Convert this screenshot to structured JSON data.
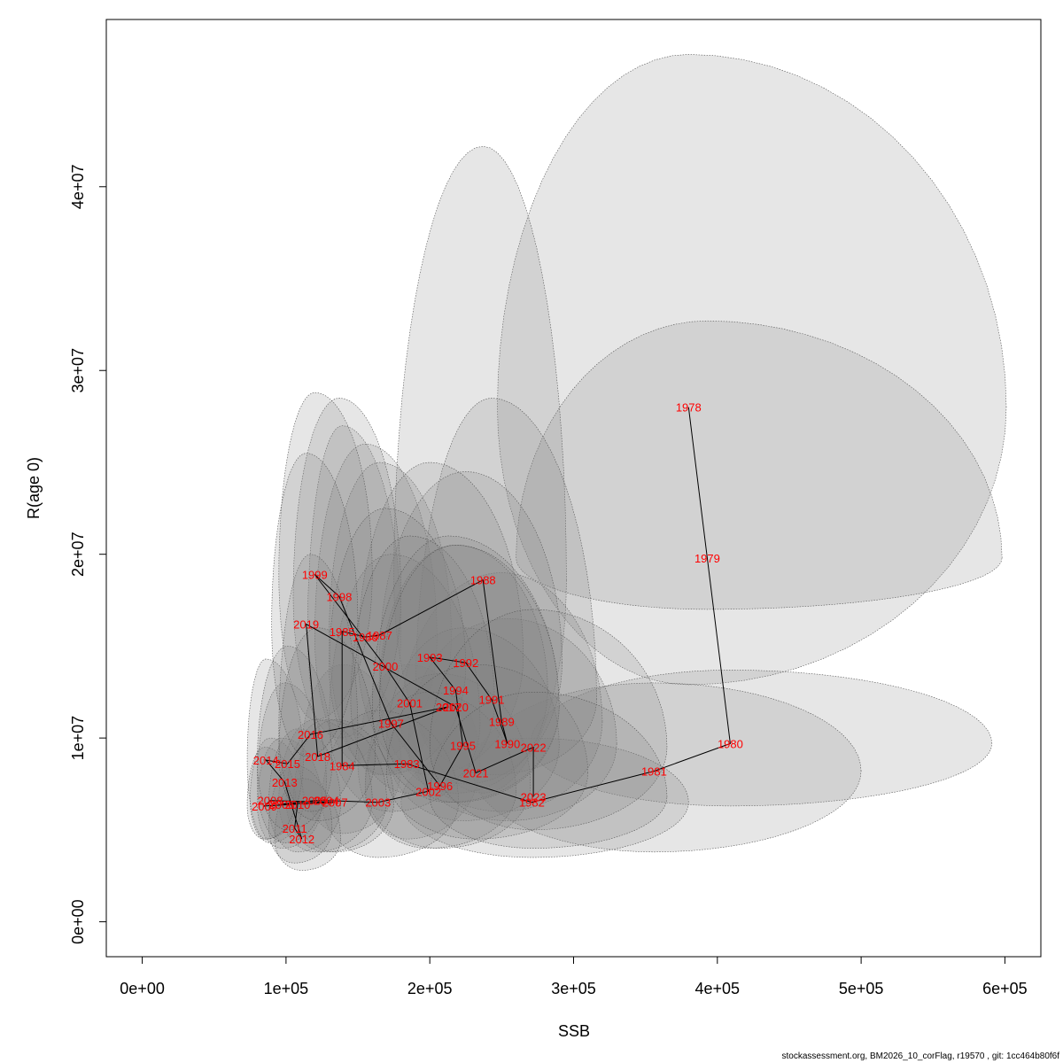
{
  "chart_data": {
    "type": "scatter",
    "title": "",
    "xlabel": "SSB",
    "ylabel": "R(age 0)",
    "xlim": [
      -25000,
      625000
    ],
    "ylim": [
      -1900000,
      49100000
    ],
    "xticks": [
      0,
      100000,
      200000,
      300000,
      400000,
      500000,
      600000
    ],
    "xtick_labels": [
      "0e+00",
      "1e+05",
      "2e+05",
      "3e+05",
      "4e+05",
      "5e+05",
      "6e+05"
    ],
    "yticks": [
      0,
      10000000,
      20000000,
      30000000,
      40000000
    ],
    "ytick_labels": [
      "0e+00",
      "1e+07",
      "2e+07",
      "3e+07",
      "4e+07"
    ],
    "grid": false,
    "legend": "none",
    "label_color": "#ff0000",
    "line_color": "#000000",
    "ellipse_fill": "#808080",
    "points": [
      {
        "year": "1978",
        "ssb": 380000,
        "r": 28000000
      },
      {
        "year": "1979",
        "ssb": 393000,
        "r": 19800000
      },
      {
        "year": "1980",
        "ssb": 409000,
        "r": 9700000
      },
      {
        "year": "1981",
        "ssb": 356000,
        "r": 8200000
      },
      {
        "year": "1982",
        "ssb": 271000,
        "r": 6500000
      },
      {
        "year": "1983",
        "ssb": 184000,
        "r": 8600000
      },
      {
        "year": "1984",
        "ssb": 139000,
        "r": 8500000
      },
      {
        "year": "1985",
        "ssb": 139000,
        "r": 15800000
      },
      {
        "year": "1986",
        "ssb": 155000,
        "r": 15500000
      },
      {
        "year": "1987",
        "ssb": 165000,
        "r": 15600000
      },
      {
        "year": "1988",
        "ssb": 237000,
        "r": 18600000
      },
      {
        "year": "1989",
        "ssb": 250000,
        "r": 10900000
      },
      {
        "year": "1990",
        "ssb": 254000,
        "r": 9700000
      },
      {
        "year": "1991",
        "ssb": 243000,
        "r": 12100000
      },
      {
        "year": "1992",
        "ssb": 225000,
        "r": 14100000
      },
      {
        "year": "1993",
        "ssb": 200000,
        "r": 14400000
      },
      {
        "year": "1994",
        "ssb": 218000,
        "r": 12600000
      },
      {
        "year": "1995",
        "ssb": 223000,
        "r": 9600000
      },
      {
        "year": "1996",
        "ssb": 207000,
        "r": 7400000
      },
      {
        "year": "1997",
        "ssb": 173000,
        "r": 10800000
      },
      {
        "year": "1998",
        "ssb": 137000,
        "r": 17700000
      },
      {
        "year": "1999",
        "ssb": 120000,
        "r": 18900000
      },
      {
        "year": "2000",
        "ssb": 169000,
        "r": 13900000
      },
      {
        "year": "2001",
        "ssb": 186000,
        "r": 11900000
      },
      {
        "year": "2002",
        "ssb": 199000,
        "r": 7100000
      },
      {
        "year": "2003",
        "ssb": 164000,
        "r": 6500000
      },
      {
        "year": "2004",
        "ssb": 128000,
        "r": 6600000
      },
      {
        "year": "2005",
        "ssb": 120000,
        "r": 6600000
      },
      {
        "year": "2006",
        "ssb": 97000,
        "r": 6400000
      },
      {
        "year": "2007",
        "ssb": 134000,
        "r": 6500000
      },
      {
        "year": "2008",
        "ssb": 89000,
        "r": 6600000
      },
      {
        "year": "2009",
        "ssb": 85000,
        "r": 6300000
      },
      {
        "year": "2010",
        "ssb": 108000,
        "r": 6400000
      },
      {
        "year": "2011",
        "ssb": 106000,
        "r": 5100000
      },
      {
        "year": "2012",
        "ssb": 111000,
        "r": 4500000
      },
      {
        "year": "2013",
        "ssb": 99000,
        "r": 7600000
      },
      {
        "year": "2014",
        "ssb": 86000,
        "r": 8800000
      },
      {
        "year": "2015",
        "ssb": 101000,
        "r": 8600000
      },
      {
        "year": "2016",
        "ssb": 117000,
        "r": 10200000
      },
      {
        "year": "2017",
        "ssb": 213000,
        "r": 11700000
      },
      {
        "year": "2018",
        "ssb": 122000,
        "r": 9000000
      },
      {
        "year": "2019",
        "ssb": 114000,
        "r": 16200000
      },
      {
        "year": "2020",
        "ssb": 218000,
        "r": 11700000
      },
      {
        "year": "2021",
        "ssb": 232000,
        "r": 8100000
      },
      {
        "year": "2022",
        "ssb": 272000,
        "r": 9500000
      },
      {
        "year": "2023",
        "ssb": 272000,
        "r": 6800000
      }
    ],
    "ellipses": [
      {
        "ssb": 380000,
        "r": 28000000,
        "ssb_lo": 247000,
        "ssb_hi": 601000,
        "r_lo": 12900000,
        "r_hi": 47200000
      },
      {
        "ssb": 393000,
        "r": 19800000,
        "ssb_lo": 260000,
        "ssb_hi": 598000,
        "r_lo": 17000000,
        "r_hi": 32700000
      },
      {
        "ssb": 409000,
        "r": 9700000,
        "ssb_lo": 270000,
        "ssb_hi": 591000,
        "r_lo": 6300000,
        "r_hi": 13700000
      },
      {
        "ssb": 356000,
        "r": 8200000,
        "ssb_lo": 230000,
        "ssb_hi": 500000,
        "r_lo": 3800000,
        "r_hi": 13000000
      },
      {
        "ssb": 271000,
        "r": 6500000,
        "ssb_lo": 180000,
        "ssb_hi": 380000,
        "r_lo": 3500000,
        "r_hi": 10000000
      },
      {
        "ssb": 184000,
        "r": 8600000,
        "ssb_lo": 150000,
        "ssb_hi": 235000,
        "r_lo": 4500000,
        "r_hi": 14000000
      },
      {
        "ssb": 139000,
        "r": 8500000,
        "ssb_lo": 110000,
        "ssb_hi": 180000,
        "r_lo": 4800000,
        "r_hi": 14000000
      },
      {
        "ssb": 139000,
        "r": 15800000,
        "ssb_lo": 115000,
        "ssb_hi": 180000,
        "r_lo": 8500000,
        "r_hi": 27000000
      },
      {
        "ssb": 155000,
        "r": 15500000,
        "ssb_lo": 120000,
        "ssb_hi": 205000,
        "r_lo": 8500000,
        "r_hi": 26000000
      },
      {
        "ssb": 165000,
        "r": 15600000,
        "ssb_lo": 130000,
        "ssb_hi": 215000,
        "r_lo": 8000000,
        "r_hi": 25000000
      },
      {
        "ssb": 237000,
        "r": 18600000,
        "ssb_lo": 175000,
        "ssb_hi": 295000,
        "r_lo": 7000000,
        "r_hi": 42200000
      },
      {
        "ssb": 250000,
        "r": 10900000,
        "ssb_lo": 180000,
        "ssb_hi": 320000,
        "r_lo": 6000000,
        "r_hi": 19000000
      },
      {
        "ssb": 254000,
        "r": 9700000,
        "ssb_lo": 185000,
        "ssb_hi": 330000,
        "r_lo": 5500000,
        "r_hi": 16500000
      },
      {
        "ssb": 243000,
        "r": 12100000,
        "ssb_lo": 190000,
        "ssb_hi": 316000,
        "r_lo": 8000000,
        "r_hi": 28500000
      },
      {
        "ssb": 225000,
        "r": 14100000,
        "ssb_lo": 165000,
        "ssb_hi": 292000,
        "r_lo": 7500000,
        "r_hi": 24500000
      },
      {
        "ssb": 200000,
        "r": 14400000,
        "ssb_lo": 150000,
        "ssb_hi": 265000,
        "r_lo": 8000000,
        "r_hi": 25000000
      },
      {
        "ssb": 218000,
        "r": 12600000,
        "ssb_lo": 165000,
        "ssb_hi": 282000,
        "r_lo": 7000000,
        "r_hi": 20500000
      },
      {
        "ssb": 223000,
        "r": 9600000,
        "ssb_lo": 170000,
        "ssb_hi": 290000,
        "r_lo": 5500000,
        "r_hi": 16000000
      },
      {
        "ssb": 207000,
        "r": 7400000,
        "ssb_lo": 155000,
        "ssb_hi": 270000,
        "r_lo": 4000000,
        "r_hi": 13500000
      },
      {
        "ssb": 173000,
        "r": 10800000,
        "ssb_lo": 130000,
        "ssb_hi": 235000,
        "r_lo": 6000000,
        "r_hi": 20000000
      },
      {
        "ssb": 137000,
        "r": 17700000,
        "ssb_lo": 105000,
        "ssb_hi": 180000,
        "r_lo": 10000000,
        "r_hi": 28500000
      },
      {
        "ssb": 120000,
        "r": 18900000,
        "ssb_lo": 95000,
        "ssb_hi": 160000,
        "r_lo": 11000000,
        "r_hi": 28800000
      },
      {
        "ssb": 169000,
        "r": 13900000,
        "ssb_lo": 130000,
        "ssb_hi": 225000,
        "r_lo": 8000000,
        "r_hi": 22500000
      },
      {
        "ssb": 186000,
        "r": 11900000,
        "ssb_lo": 145000,
        "ssb_hi": 245000,
        "r_lo": 7000000,
        "r_hi": 21000000
      },
      {
        "ssb": 199000,
        "r": 7100000,
        "ssb_lo": 155000,
        "ssb_hi": 260000,
        "r_lo": 4000000,
        "r_hi": 12500000
      },
      {
        "ssb": 164000,
        "r": 6500000,
        "ssb_lo": 125000,
        "ssb_hi": 220000,
        "r_lo": 3500000,
        "r_hi": 11500000
      },
      {
        "ssb": 128000,
        "r": 6600000,
        "ssb_lo": 100000,
        "ssb_hi": 170000,
        "r_lo": 3800000,
        "r_hi": 11000000
      },
      {
        "ssb": 120000,
        "r": 6600000,
        "ssb_lo": 95000,
        "ssb_hi": 160000,
        "r_lo": 3800000,
        "r_hi": 11000000
      },
      {
        "ssb": 97000,
        "r": 6400000,
        "ssb_lo": 80000,
        "ssb_hi": 125000,
        "r_lo": 4000000,
        "r_hi": 10000000
      },
      {
        "ssb": 134000,
        "r": 6500000,
        "ssb_lo": 105000,
        "ssb_hi": 175000,
        "r_lo": 3800000,
        "r_hi": 11000000
      },
      {
        "ssb": 89000,
        "r": 6600000,
        "ssb_lo": 75000,
        "ssb_hi": 112000,
        "r_lo": 4300000,
        "r_hi": 10000000
      },
      {
        "ssb": 85000,
        "r": 6300000,
        "ssb_lo": 73000,
        "ssb_hi": 107000,
        "r_lo": 4500000,
        "r_hi": 9500000
      },
      {
        "ssb": 108000,
        "r": 6400000,
        "ssb_lo": 88000,
        "ssb_hi": 138000,
        "r_lo": 3800000,
        "r_hi": 10500000
      },
      {
        "ssb": 106000,
        "r": 5100000,
        "ssb_lo": 88000,
        "ssb_hi": 132000,
        "r_lo": 3200000,
        "r_hi": 8500000
      },
      {
        "ssb": 111000,
        "r": 4500000,
        "ssb_lo": 92000,
        "ssb_hi": 138000,
        "r_lo": 2800000,
        "r_hi": 7800000
      },
      {
        "ssb": 99000,
        "r": 7600000,
        "ssb_lo": 80000,
        "ssb_hi": 128000,
        "r_lo": 4300000,
        "r_hi": 13000000
      },
      {
        "ssb": 86000,
        "r": 8800000,
        "ssb_lo": 73000,
        "ssb_hi": 112000,
        "r_lo": 4500000,
        "r_hi": 14300000
      },
      {
        "ssb": 101000,
        "r": 8600000,
        "ssb_lo": 80000,
        "ssb_hi": 132000,
        "r_lo": 5000000,
        "r_hi": 15000000
      },
      {
        "ssb": 117000,
        "r": 10200000,
        "ssb_lo": 95000,
        "ssb_hi": 150000,
        "r_lo": 6000000,
        "r_hi": 20000000
      },
      {
        "ssb": 213000,
        "r": 11700000,
        "ssb_lo": 160000,
        "ssb_hi": 290000,
        "r_lo": 6500000,
        "r_hi": 21000000
      },
      {
        "ssb": 122000,
        "r": 9000000,
        "ssb_lo": 95000,
        "ssb_hi": 162000,
        "r_lo": 5500000,
        "r_hi": 16000000
      },
      {
        "ssb": 114000,
        "r": 16200000,
        "ssb_lo": 90000,
        "ssb_hi": 150000,
        "r_lo": 9000000,
        "r_hi": 25500000
      },
      {
        "ssb": 218000,
        "r": 11700000,
        "ssb_lo": 165000,
        "ssb_hi": 290000,
        "r_lo": 6500000,
        "r_hi": 20500000
      },
      {
        "ssb": 232000,
        "r": 8100000,
        "ssb_lo": 170000,
        "ssb_hi": 310000,
        "r_lo": 4500000,
        "r_hi": 14000000
      },
      {
        "ssb": 272000,
        "r": 9500000,
        "ssb_lo": 200000,
        "ssb_hi": 365000,
        "r_lo": 5000000,
        "r_hi": 17000000
      },
      {
        "ssb": 272000,
        "r": 6800000,
        "ssb_lo": 200000,
        "ssb_hi": 365000,
        "r_lo": 4000000,
        "r_hi": 12500000
      }
    ]
  },
  "footer": "stockassessment.org, BM2026_10_corFlag, r19570 , git: 1cc464b80f6f"
}
